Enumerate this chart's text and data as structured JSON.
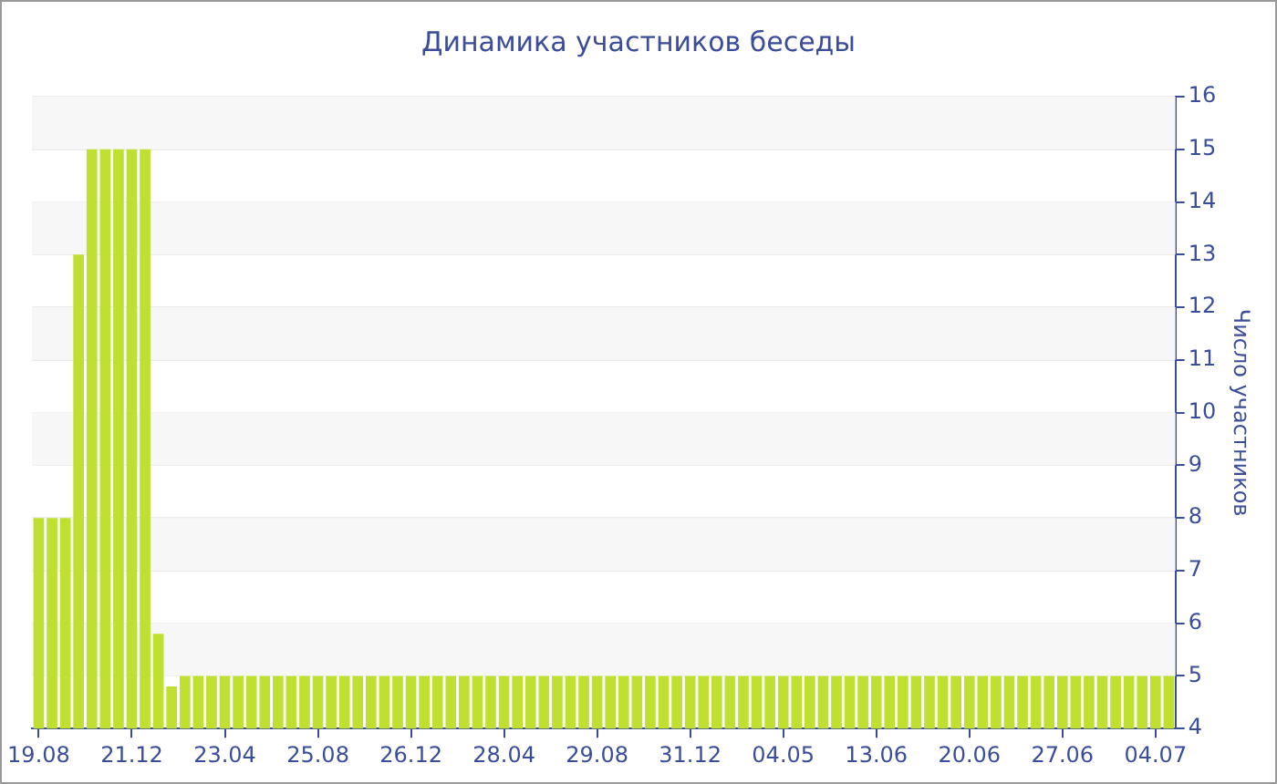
{
  "chart_data": {
    "type": "bar",
    "title": "Динамика участников беседы",
    "ylabel": "Число участников",
    "categories": [
      "19.08",
      null,
      null,
      null,
      null,
      null,
      null,
      "21.12",
      null,
      null,
      null,
      null,
      null,
      null,
      "23.04",
      null,
      null,
      null,
      null,
      null,
      null,
      "25.08",
      null,
      null,
      null,
      null,
      null,
      null,
      "26.12",
      null,
      null,
      null,
      null,
      null,
      null,
      "28.04",
      null,
      null,
      null,
      null,
      null,
      null,
      "29.08",
      null,
      null,
      null,
      null,
      null,
      null,
      "31.12",
      null,
      null,
      null,
      null,
      null,
      null,
      "04.05",
      null,
      null,
      null,
      null,
      null,
      null,
      "13.06",
      null,
      null,
      null,
      null,
      null,
      null,
      "20.06",
      null,
      null,
      null,
      null,
      null,
      null,
      "27.06",
      null,
      null,
      null,
      null,
      null,
      null,
      "04.07",
      null
    ],
    "values": [
      8,
      8,
      8,
      13,
      15,
      15,
      15,
      15,
      15,
      5.8,
      4.8,
      5,
      5,
      5,
      5,
      5,
      5,
      5,
      5,
      5,
      5,
      5,
      5,
      5,
      5,
      5,
      5,
      5,
      5,
      5,
      5,
      5,
      5,
      5,
      5,
      5,
      5,
      5,
      5,
      5,
      5,
      5,
      5,
      5,
      5,
      5,
      5,
      5,
      5,
      5,
      5,
      5,
      5,
      5,
      5,
      5,
      5,
      5,
      5,
      5,
      5,
      5,
      5,
      5,
      5,
      5,
      5,
      5,
      5,
      5,
      5,
      5,
      5,
      5,
      5,
      5,
      5,
      5,
      5,
      5,
      5,
      5,
      5,
      5,
      5,
      5
    ],
    "color": "#bfe030",
    "ylim": [
      4,
      16
    ],
    "yticks": [
      4,
      5,
      6,
      7,
      8,
      9,
      10,
      11,
      12,
      13,
      14,
      15,
      16
    ],
    "grid": "y",
    "legend": false
  }
}
